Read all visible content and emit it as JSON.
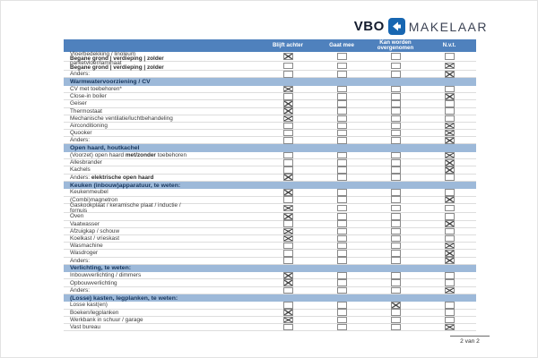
{
  "logo": {
    "vbo": "VBO",
    "makelaar": "MAKELAAR",
    "icon": "vbo-diamond-icon"
  },
  "colors": {
    "header_bar": "#4f81bd",
    "section_bar": "#9db9d9",
    "header_text": "#ffffff",
    "section_text": "#17365d",
    "logo_blue": "#1766b1",
    "checkbox_mark": "#4a4a4a"
  },
  "columns": [
    "Blijft achter",
    "Gaat mee",
    "Kan worden overgenomen",
    "N.v.t."
  ],
  "column_keys": [
    "blijft-achter",
    "gaat-mee",
    "kan-worden-overgenomen",
    "nvt"
  ],
  "checkbox_states": {
    "checked_glyph": "crossed-box",
    "unchecked_glyph": "empty-box"
  },
  "sections": [
    {
      "title": null,
      "rows": [
        {
          "lines": [
            [
              [
                "Vloerbedekking / linoleum",
                false
              ]
            ],
            [
              [
                "Begane grond | verdieping | zolder",
                true
              ]
            ]
          ],
          "checked": 0
        },
        {
          "lines": [
            [
              [
                "parketvloer/laminaat",
                false
              ]
            ],
            [
              [
                "Begane grond | verdieping | zolder",
                true
              ]
            ]
          ],
          "checked": 3
        },
        {
          "lines": [
            [
              [
                "Anders:",
                false
              ]
            ]
          ],
          "checked": 3
        }
      ]
    },
    {
      "title": "Warmwatervoorziening / CV",
      "rows": [
        {
          "lines": [
            [
              [
                "CV met toebehoren*",
                false
              ]
            ]
          ],
          "checked": 0
        },
        {
          "lines": [
            [
              [
                "Close-in boiler",
                false
              ]
            ]
          ],
          "checked": 3
        },
        {
          "lines": [
            [
              [
                "Geiser",
                false
              ]
            ]
          ],
          "checked": 0
        },
        {
          "lines": [
            [
              [
                "Thermostaat",
                false
              ]
            ]
          ],
          "checked": 0
        },
        {
          "lines": [
            [
              [
                "Mechanische ventilatie/luchtbehandeling",
                false
              ]
            ]
          ],
          "checked": 0
        },
        {
          "lines": [
            [
              [
                "Airconditioning",
                false
              ]
            ]
          ],
          "checked": 3
        },
        {
          "lines": [
            [
              [
                "Quooker",
                false
              ]
            ]
          ],
          "checked": 3
        },
        {
          "lines": [
            [
              [
                "Anders:",
                false
              ]
            ]
          ],
          "checked": 3
        }
      ]
    },
    {
      "title": "Open haard, houtkachel",
      "rows": [
        {
          "lines": [
            [
              [
                "(Voorzet) open haard ",
                false
              ],
              [
                "met/zonder",
                true
              ],
              [
                " toebehoren",
                false
              ]
            ]
          ],
          "checked": 3
        },
        {
          "lines": [
            [
              [
                "Allesbrander",
                false
              ]
            ]
          ],
          "checked": 3
        },
        {
          "lines": [
            [
              [
                "Kachels",
                false
              ]
            ]
          ],
          "checked": 3
        },
        {
          "lines": [
            [
              [
                "Anders: ",
                false
              ],
              [
                "elektrische open haard",
                true
              ]
            ]
          ],
          "checked": 0
        }
      ]
    },
    {
      "title": "Keuken (inbouw)apparatuur, te weten:",
      "rows": [
        {
          "lines": [
            [
              [
                "Keukenmeubel",
                false
              ]
            ]
          ],
          "checked": 0
        },
        {
          "lines": [
            [
              [
                "(Combi)magnetron",
                false
              ]
            ]
          ],
          "checked": 3
        },
        {
          "lines": [
            [
              [
                "Gaskookplaat / keramische plaat / inductie /",
                false
              ]
            ],
            [
              [
                "fornuis",
                false
              ]
            ]
          ],
          "checked": 0
        },
        {
          "lines": [
            [
              [
                "Oven",
                false
              ]
            ]
          ],
          "checked": 0
        },
        {
          "lines": [
            [
              [
                "Vaatwasser",
                false
              ]
            ]
          ],
          "checked": 3
        },
        {
          "lines": [
            [
              [
                "Afzuigkap / schouw",
                false
              ]
            ]
          ],
          "checked": 0
        },
        {
          "lines": [
            [
              [
                "Koelkast / vrieskast",
                false
              ]
            ]
          ],
          "checked": 0
        },
        {
          "lines": [
            [
              [
                "Wasmachine",
                false
              ]
            ]
          ],
          "checked": 3
        },
        {
          "lines": [
            [
              [
                "Wasdroger",
                false
              ]
            ]
          ],
          "checked": 3
        },
        {
          "lines": [
            [
              [
                "Anders:",
                false
              ]
            ]
          ],
          "checked": 3
        }
      ]
    },
    {
      "title": "Verlichting, te weten:",
      "rows": [
        {
          "lines": [
            [
              [
                "Inbouwverlichting / dimmers",
                false
              ]
            ]
          ],
          "checked": 0
        },
        {
          "lines": [
            [
              [
                "Opbouwverlichting",
                false
              ]
            ]
          ],
          "checked": 0
        },
        {
          "lines": [
            [
              [
                "Anders:",
                false
              ]
            ]
          ],
          "checked": 3
        }
      ]
    },
    {
      "title": "(Losse) kasten, legplanken, te weten:",
      "rows": [
        {
          "lines": [
            [
              [
                "Losse kast(en)",
                false
              ]
            ]
          ],
          "checked": 2
        },
        {
          "lines": [
            [
              [
                "Boeken/legplanken",
                false
              ]
            ]
          ],
          "checked": 0
        },
        {
          "lines": [
            [
              [
                "Werkbank in schuur / garage",
                false
              ]
            ]
          ],
          "checked": 0
        },
        {
          "lines": [
            [
              [
                "Vast bureau",
                false
              ]
            ]
          ],
          "checked": 3
        }
      ]
    }
  ],
  "footer": {
    "page": "2 van 2"
  }
}
